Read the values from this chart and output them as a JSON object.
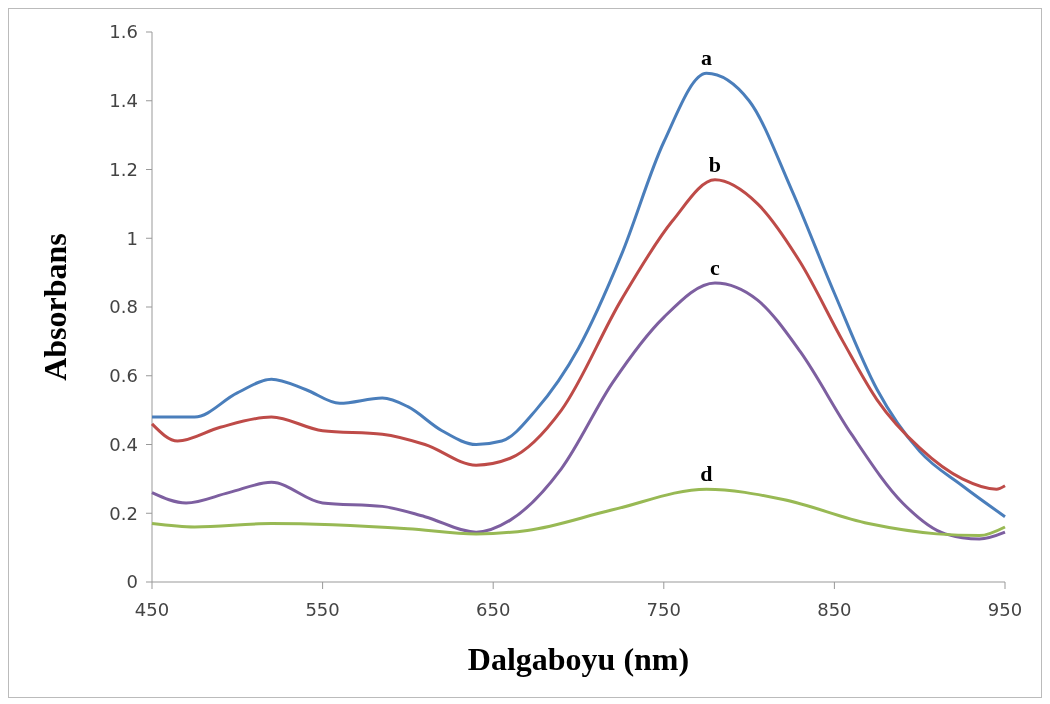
{
  "chart_data": {
    "type": "line",
    "xlabel": "Dalgaboyu (nm)",
    "ylabel": "Absorbans",
    "xlim": [
      450,
      950
    ],
    "xticks": [
      450,
      550,
      650,
      750,
      850,
      950
    ],
    "ylim": [
      0,
      1.6
    ],
    "yticks": [
      0,
      0.2,
      0.4,
      0.6,
      0.8,
      1,
      1.2,
      1.4,
      1.6
    ],
    "grid": false,
    "marker": "none",
    "line_style": "solid",
    "series": [
      {
        "name": "a",
        "color": "#4a7ebb",
        "x": [
          450,
          475,
          500,
          520,
          540,
          560,
          585,
          600,
          620,
          640,
          655,
          675,
          700,
          725,
          750,
          775,
          800,
          825,
          850,
          875,
          900,
          925,
          950
        ],
        "values": [
          0.48,
          0.48,
          0.55,
          0.59,
          0.56,
          0.52,
          0.535,
          0.51,
          0.44,
          0.4,
          0.41,
          0.5,
          0.68,
          0.95,
          1.28,
          1.48,
          1.4,
          1.14,
          0.84,
          0.56,
          0.38,
          0.28,
          0.19
        ]
      },
      {
        "name": "b",
        "color": "#be4b48",
        "x": [
          450,
          465,
          490,
          520,
          550,
          585,
          610,
          640,
          660,
          690,
          725,
          755,
          780,
          805,
          830,
          855,
          875,
          900,
          925,
          945,
          950
        ],
        "values": [
          0.46,
          0.41,
          0.45,
          0.48,
          0.44,
          0.43,
          0.4,
          0.34,
          0.36,
          0.5,
          0.82,
          1.05,
          1.17,
          1.1,
          0.93,
          0.7,
          0.53,
          0.39,
          0.3,
          0.27,
          0.28
        ]
      },
      {
        "name": "c",
        "color": "#7d5fa0",
        "x": [
          450,
          470,
          495,
          520,
          550,
          585,
          610,
          640,
          660,
          690,
          720,
          750,
          780,
          805,
          830,
          860,
          890,
          915,
          935,
          950
        ],
        "values": [
          0.26,
          0.23,
          0.26,
          0.29,
          0.23,
          0.22,
          0.19,
          0.145,
          0.18,
          0.33,
          0.58,
          0.77,
          0.87,
          0.82,
          0.67,
          0.43,
          0.23,
          0.14,
          0.125,
          0.145
        ]
      },
      {
        "name": "d",
        "color": "#98b954",
        "x": [
          450,
          475,
          520,
          600,
          640,
          670,
          720,
          775,
          820,
          870,
          910,
          935,
          950
        ],
        "values": [
          0.17,
          0.16,
          0.17,
          0.155,
          0.14,
          0.15,
          0.21,
          0.27,
          0.24,
          0.17,
          0.14,
          0.135,
          0.16
        ]
      }
    ]
  }
}
